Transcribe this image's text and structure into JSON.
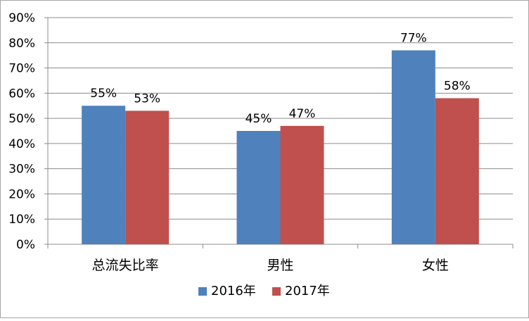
{
  "chart_data": {
    "type": "bar",
    "title": "",
    "xlabel": "",
    "ylabel": "",
    "categories": [
      "总流失比率",
      "男性",
      "女性"
    ],
    "series": [
      {
        "name": "2016年",
        "values": [
          55,
          45,
          77
        ],
        "color": "#4f81bd"
      },
      {
        "name": "2017年",
        "values": [
          53,
          47,
          58
        ],
        "color": "#c0504d"
      }
    ],
    "ylim": [
      0,
      90
    ],
    "y_tick_step": 10,
    "y_tick_format": "percent",
    "data_labels": true,
    "grid": true,
    "legend": "bottom-center"
  }
}
